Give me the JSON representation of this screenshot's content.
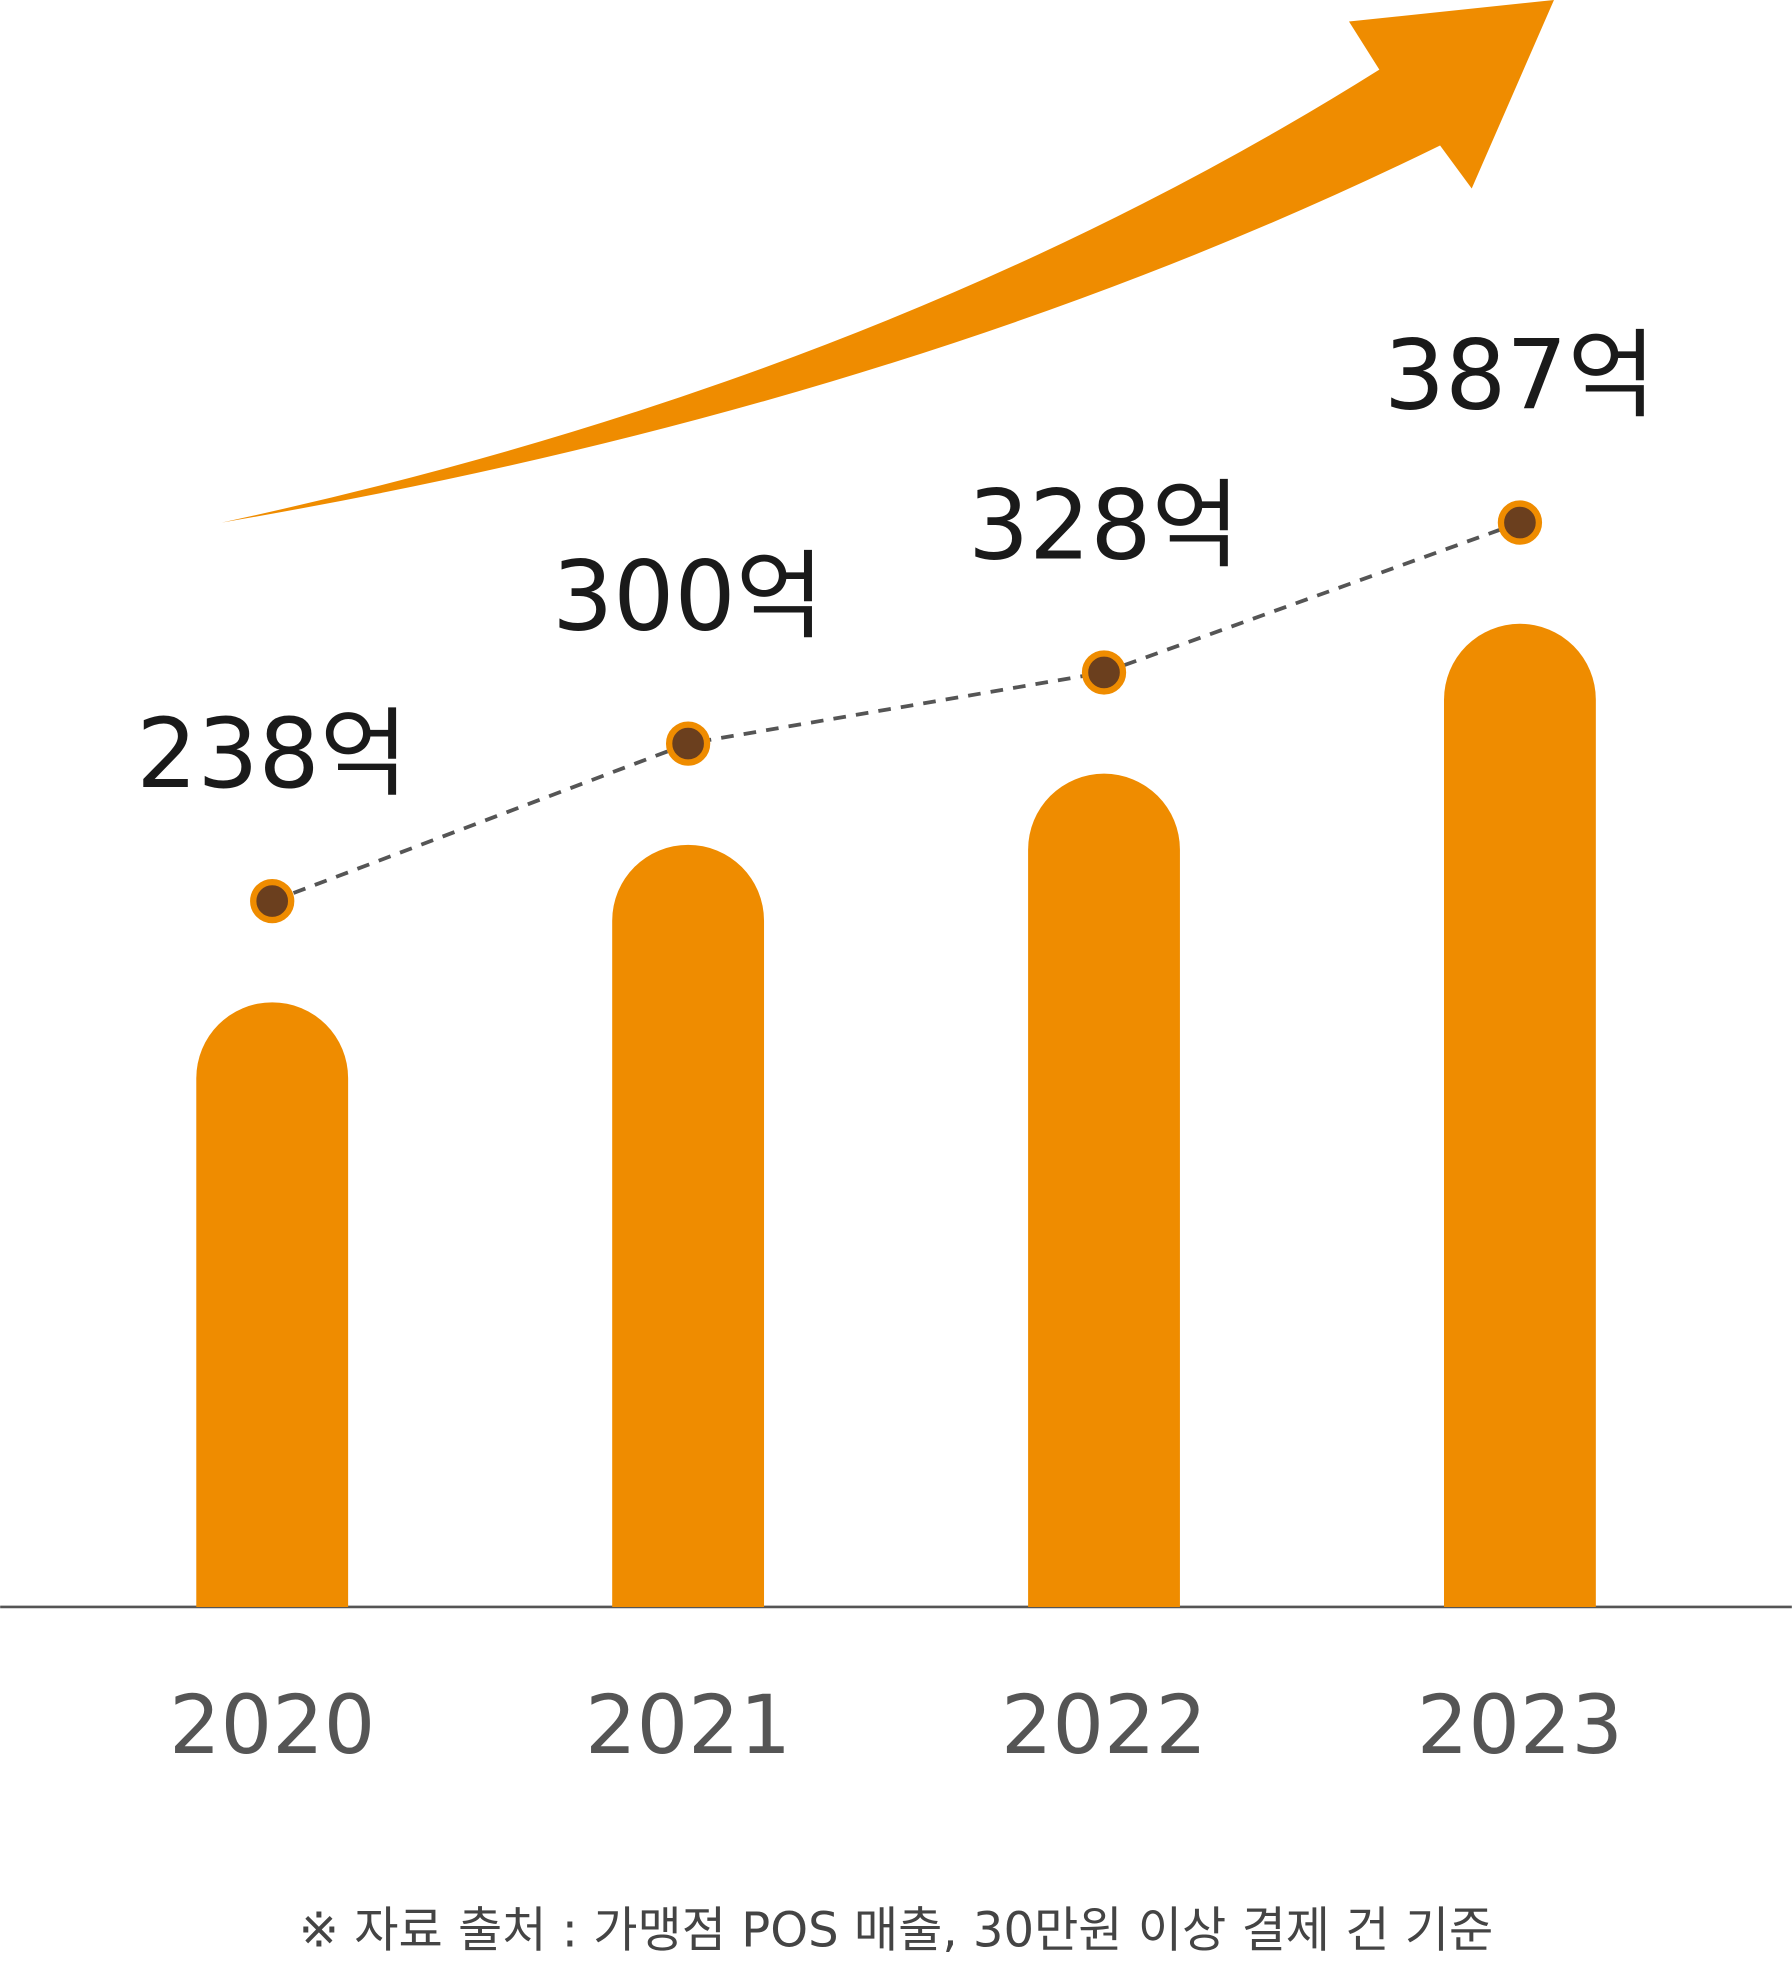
{
  "chart_data": {
    "type": "bar",
    "categories": [
      "2020",
      "2021",
      "2022",
      "2023"
    ],
    "values": [
      238,
      300,
      328,
      387
    ],
    "value_labels": [
      "238억",
      "300억",
      "328억",
      "387억"
    ],
    "color": "#EF8C00",
    "note": "※ 자료 출처 : 가맹점 POS 매출, 30만원 이상 결제 건 기준"
  }
}
